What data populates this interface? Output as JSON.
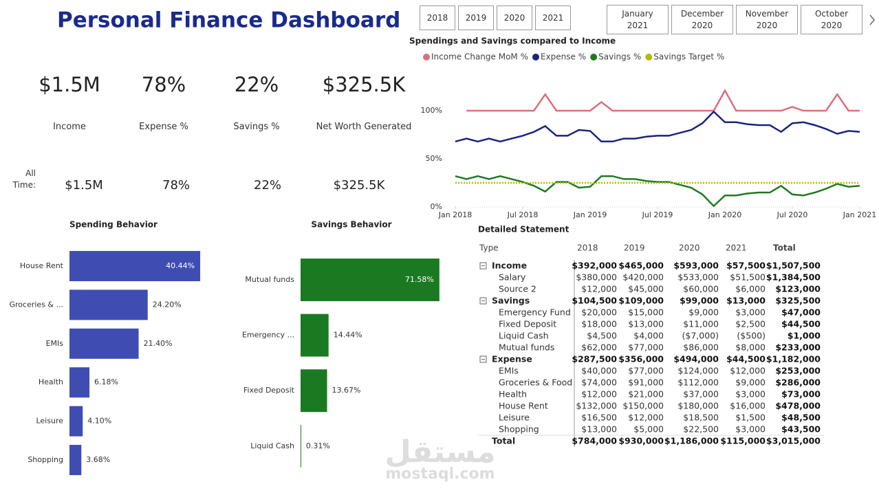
{
  "header": {
    "title": "Personal Finance Dashboard"
  },
  "slicers": {
    "years": [
      "2018",
      "2019",
      "2020",
      "2021"
    ],
    "months": [
      "January 2021",
      "December 2020",
      "November 2020",
      "October 2020"
    ]
  },
  "kpis": [
    {
      "value": "$1.5M",
      "label": "Income"
    },
    {
      "value": "78%",
      "label": "Expense %"
    },
    {
      "value": "22%",
      "label": "Savings %"
    },
    {
      "value": "$325.5K",
      "label": "Net Worth Generated"
    }
  ],
  "all_time": {
    "label": "All Time:",
    "values": [
      "$1.5M",
      "78%",
      "22%",
      "$325.5K"
    ]
  },
  "chart_data": [
    {
      "type": "line",
      "title": "Spendings and Savings compared to Income",
      "x": [
        "2018-01",
        "2018-02",
        "2018-03",
        "2018-04",
        "2018-05",
        "2018-06",
        "2018-07",
        "2018-08",
        "2018-09",
        "2018-10",
        "2018-11",
        "2018-12",
        "2019-01",
        "2019-02",
        "2019-03",
        "2019-04",
        "2019-05",
        "2019-06",
        "2019-07",
        "2019-08",
        "2019-09",
        "2019-10",
        "2019-11",
        "2019-12",
        "2020-01",
        "2020-02",
        "2020-03",
        "2020-04",
        "2020-05",
        "2020-06",
        "2020-07",
        "2020-08",
        "2020-09",
        "2020-10",
        "2020-11",
        "2020-12",
        "2021-01"
      ],
      "xticks": [
        {
          "value": "2018-01",
          "label": "Jan 2018"
        },
        {
          "value": "2018-07",
          "label": "Jul 2018"
        },
        {
          "value": "2019-01",
          "label": "Jan 2019"
        },
        {
          "value": "2019-07",
          "label": "Jul 2019"
        },
        {
          "value": "2020-01",
          "label": "Jan 2020"
        },
        {
          "value": "2020-07",
          "label": "Jul 2020"
        },
        {
          "value": "2021-01",
          "label": "Jan 2021"
        }
      ],
      "ylim": [
        0,
        135
      ],
      "yticks": [
        {
          "value": 0,
          "label": "0%"
        },
        {
          "value": 50,
          "label": "50%"
        },
        {
          "value": 100,
          "label": "100%"
        }
      ],
      "series": [
        {
          "name": "Income Change MoM %",
          "color": "#e06c7a",
          "values": [
            null,
            100,
            100,
            100,
            100,
            100,
            100,
            100,
            117,
            100,
            100,
            100,
            100,
            109,
            100,
            100,
            100,
            100,
            100,
            100,
            100,
            100,
            100,
            100,
            121,
            100,
            100,
            100,
            100,
            100,
            104,
            100,
            100,
            100,
            117,
            100,
            100
          ]
        },
        {
          "name": "Expense %",
          "color": "#1a237e",
          "values": [
            68,
            71,
            68,
            71,
            68,
            71,
            74,
            78,
            84,
            74,
            74,
            80,
            79,
            68,
            68,
            71,
            71,
            73,
            74,
            74,
            77,
            80,
            87,
            99,
            88,
            88,
            86,
            85,
            85,
            78,
            87,
            88,
            85,
            81,
            76,
            79,
            78
          ]
        },
        {
          "name": "Savings %",
          "color": "#1f7a1f",
          "values": [
            32,
            29,
            32,
            29,
            32,
            29,
            26,
            22,
            16,
            26,
            26,
            20,
            21,
            32,
            32,
            29,
            29,
            27,
            26,
            26,
            23,
            20,
            13,
            1,
            12,
            12,
            14,
            15,
            15,
            22,
            13,
            12,
            15,
            19,
            24,
            21,
            22
          ]
        },
        {
          "name": "Savings Target %",
          "color": "#b5b800",
          "dashed": true,
          "values": [
            25,
            25,
            25,
            25,
            25,
            25,
            25,
            25,
            25,
            25,
            25,
            25,
            25,
            25,
            25,
            25,
            25,
            25,
            25,
            25,
            25,
            25,
            25,
            25,
            25,
            25,
            25,
            25,
            25,
            25,
            25,
            25,
            25,
            25,
            25,
            25,
            25
          ]
        }
      ]
    },
    {
      "type": "bar",
      "horizontal": true,
      "title": "Spending Behavior",
      "color": "#3f4db3",
      "categories": [
        "House Rent",
        "Groceries & ...",
        "EMIs",
        "Health",
        "Leisure",
        "Shopping"
      ],
      "values": [
        40.44,
        24.2,
        21.4,
        6.18,
        4.1,
        3.68
      ],
      "value_labels": [
        "40.44%",
        "24.20%",
        "21.40%",
        "6.18%",
        "4.10%",
        "3.68%"
      ]
    },
    {
      "type": "bar",
      "horizontal": true,
      "title": "Savings Behavior",
      "color": "#1b7a21",
      "categories": [
        "Mutual funds",
        "Emergency ...",
        "Fixed Deposit",
        "Liquid Cash"
      ],
      "values": [
        71.58,
        14.44,
        13.67,
        0.31
      ],
      "value_labels": [
        "71.58%",
        "14.44%",
        "13.67%",
        "0.31%"
      ]
    }
  ],
  "table": {
    "title": "Detailed Statement",
    "columns": [
      "Type",
      "2018",
      "2019",
      "2020",
      "2021",
      "Total"
    ],
    "groups": [
      {
        "label": "Income",
        "values": [
          "$392,000",
          "$465,000",
          "$593,000",
          "$57,500",
          "$1,507,500"
        ],
        "rows": [
          {
            "label": "Salary",
            "values": [
              "$380,000",
              "$420,000",
              "$533,000",
              "$51,500",
              "$1,384,500"
            ]
          },
          {
            "label": "Source 2",
            "values": [
              "$12,000",
              "$45,000",
              "$60,000",
              "$6,000",
              "$123,000"
            ]
          }
        ]
      },
      {
        "label": "Savings",
        "values": [
          "$104,500",
          "$109,000",
          "$99,000",
          "$13,000",
          "$325,500"
        ],
        "rows": [
          {
            "label": "Emergency Fund",
            "values": [
              "$20,000",
              "$15,000",
              "$9,000",
              "$3,000",
              "$47,000"
            ]
          },
          {
            "label": "Fixed Deposit",
            "values": [
              "$18,000",
              "$13,000",
              "$11,000",
              "$2,500",
              "$44,500"
            ]
          },
          {
            "label": "Liquid Cash",
            "values": [
              "$4,500",
              "$4,000",
              "($7,000)",
              "($500)",
              "$1,000"
            ]
          },
          {
            "label": "Mutual funds",
            "values": [
              "$62,000",
              "$77,000",
              "$86,000",
              "$8,000",
              "$233,000"
            ]
          }
        ]
      },
      {
        "label": "Expense",
        "values": [
          "$287,500",
          "$356,000",
          "$494,000",
          "$44,500",
          "$1,182,000"
        ],
        "rows": [
          {
            "label": "EMIs",
            "values": [
              "$40,000",
              "$77,000",
              "$124,000",
              "$12,000",
              "$253,000"
            ]
          },
          {
            "label": "Groceries & Food",
            "values": [
              "$74,000",
              "$91,000",
              "$112,000",
              "$9,000",
              "$286,000"
            ]
          },
          {
            "label": "Health",
            "values": [
              "$12,000",
              "$21,000",
              "$37,000",
              "$3,000",
              "$73,000"
            ]
          },
          {
            "label": "House Rent",
            "values": [
              "$132,000",
              "$150,000",
              "$180,000",
              "$16,000",
              "$478,000"
            ]
          },
          {
            "label": "Leisure",
            "values": [
              "$16,500",
              "$12,000",
              "$18,500",
              "$1,500",
              "$48,500"
            ]
          },
          {
            "label": "Shopping",
            "values": [
              "$13,000",
              "$5,000",
              "$22,500",
              "$3,000",
              "$43,500"
            ]
          }
        ]
      }
    ],
    "total": {
      "label": "Total",
      "values": [
        "$784,000",
        "$930,000",
        "$1,186,000",
        "$115,000",
        "$3,015,000"
      ]
    }
  },
  "watermark": {
    "logo": "مستقل",
    "url": "mostaql.com"
  }
}
